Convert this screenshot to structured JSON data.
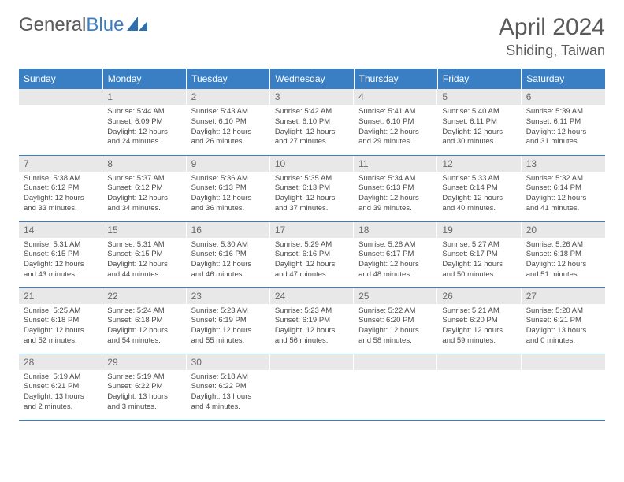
{
  "brand": {
    "part1": "General",
    "part2": "Blue"
  },
  "colors": {
    "headerBar": "#3a7fc4",
    "dayNumBg": "#e8e8e8",
    "text": "#4a4a4a",
    "mutedText": "#6a6a6a",
    "border": "#3a7fc4",
    "background": "#ffffff"
  },
  "title": "April 2024",
  "location": "Shiding, Taiwan",
  "weekdays": [
    "Sunday",
    "Monday",
    "Tuesday",
    "Wednesday",
    "Thursday",
    "Friday",
    "Saturday"
  ],
  "calendar": {
    "startWeekdayIndex": 1,
    "daysInMonth": 30
  },
  "days": {
    "1": {
      "sunrise": "Sunrise: 5:44 AM",
      "sunset": "Sunset: 6:09 PM",
      "daylight": "Daylight: 12 hours and 24 minutes."
    },
    "2": {
      "sunrise": "Sunrise: 5:43 AM",
      "sunset": "Sunset: 6:10 PM",
      "daylight": "Daylight: 12 hours and 26 minutes."
    },
    "3": {
      "sunrise": "Sunrise: 5:42 AM",
      "sunset": "Sunset: 6:10 PM",
      "daylight": "Daylight: 12 hours and 27 minutes."
    },
    "4": {
      "sunrise": "Sunrise: 5:41 AM",
      "sunset": "Sunset: 6:10 PM",
      "daylight": "Daylight: 12 hours and 29 minutes."
    },
    "5": {
      "sunrise": "Sunrise: 5:40 AM",
      "sunset": "Sunset: 6:11 PM",
      "daylight": "Daylight: 12 hours and 30 minutes."
    },
    "6": {
      "sunrise": "Sunrise: 5:39 AM",
      "sunset": "Sunset: 6:11 PM",
      "daylight": "Daylight: 12 hours and 31 minutes."
    },
    "7": {
      "sunrise": "Sunrise: 5:38 AM",
      "sunset": "Sunset: 6:12 PM",
      "daylight": "Daylight: 12 hours and 33 minutes."
    },
    "8": {
      "sunrise": "Sunrise: 5:37 AM",
      "sunset": "Sunset: 6:12 PM",
      "daylight": "Daylight: 12 hours and 34 minutes."
    },
    "9": {
      "sunrise": "Sunrise: 5:36 AM",
      "sunset": "Sunset: 6:13 PM",
      "daylight": "Daylight: 12 hours and 36 minutes."
    },
    "10": {
      "sunrise": "Sunrise: 5:35 AM",
      "sunset": "Sunset: 6:13 PM",
      "daylight": "Daylight: 12 hours and 37 minutes."
    },
    "11": {
      "sunrise": "Sunrise: 5:34 AM",
      "sunset": "Sunset: 6:13 PM",
      "daylight": "Daylight: 12 hours and 39 minutes."
    },
    "12": {
      "sunrise": "Sunrise: 5:33 AM",
      "sunset": "Sunset: 6:14 PM",
      "daylight": "Daylight: 12 hours and 40 minutes."
    },
    "13": {
      "sunrise": "Sunrise: 5:32 AM",
      "sunset": "Sunset: 6:14 PM",
      "daylight": "Daylight: 12 hours and 41 minutes."
    },
    "14": {
      "sunrise": "Sunrise: 5:31 AM",
      "sunset": "Sunset: 6:15 PM",
      "daylight": "Daylight: 12 hours and 43 minutes."
    },
    "15": {
      "sunrise": "Sunrise: 5:31 AM",
      "sunset": "Sunset: 6:15 PM",
      "daylight": "Daylight: 12 hours and 44 minutes."
    },
    "16": {
      "sunrise": "Sunrise: 5:30 AM",
      "sunset": "Sunset: 6:16 PM",
      "daylight": "Daylight: 12 hours and 46 minutes."
    },
    "17": {
      "sunrise": "Sunrise: 5:29 AM",
      "sunset": "Sunset: 6:16 PM",
      "daylight": "Daylight: 12 hours and 47 minutes."
    },
    "18": {
      "sunrise": "Sunrise: 5:28 AM",
      "sunset": "Sunset: 6:17 PM",
      "daylight": "Daylight: 12 hours and 48 minutes."
    },
    "19": {
      "sunrise": "Sunrise: 5:27 AM",
      "sunset": "Sunset: 6:17 PM",
      "daylight": "Daylight: 12 hours and 50 minutes."
    },
    "20": {
      "sunrise": "Sunrise: 5:26 AM",
      "sunset": "Sunset: 6:18 PM",
      "daylight": "Daylight: 12 hours and 51 minutes."
    },
    "21": {
      "sunrise": "Sunrise: 5:25 AM",
      "sunset": "Sunset: 6:18 PM",
      "daylight": "Daylight: 12 hours and 52 minutes."
    },
    "22": {
      "sunrise": "Sunrise: 5:24 AM",
      "sunset": "Sunset: 6:18 PM",
      "daylight": "Daylight: 12 hours and 54 minutes."
    },
    "23": {
      "sunrise": "Sunrise: 5:23 AM",
      "sunset": "Sunset: 6:19 PM",
      "daylight": "Daylight: 12 hours and 55 minutes."
    },
    "24": {
      "sunrise": "Sunrise: 5:23 AM",
      "sunset": "Sunset: 6:19 PM",
      "daylight": "Daylight: 12 hours and 56 minutes."
    },
    "25": {
      "sunrise": "Sunrise: 5:22 AM",
      "sunset": "Sunset: 6:20 PM",
      "daylight": "Daylight: 12 hours and 58 minutes."
    },
    "26": {
      "sunrise": "Sunrise: 5:21 AM",
      "sunset": "Sunset: 6:20 PM",
      "daylight": "Daylight: 12 hours and 59 minutes."
    },
    "27": {
      "sunrise": "Sunrise: 5:20 AM",
      "sunset": "Sunset: 6:21 PM",
      "daylight": "Daylight: 13 hours and 0 minutes."
    },
    "28": {
      "sunrise": "Sunrise: 5:19 AM",
      "sunset": "Sunset: 6:21 PM",
      "daylight": "Daylight: 13 hours and 2 minutes."
    },
    "29": {
      "sunrise": "Sunrise: 5:19 AM",
      "sunset": "Sunset: 6:22 PM",
      "daylight": "Daylight: 13 hours and 3 minutes."
    },
    "30": {
      "sunrise": "Sunrise: 5:18 AM",
      "sunset": "Sunset: 6:22 PM",
      "daylight": "Daylight: 13 hours and 4 minutes."
    }
  }
}
